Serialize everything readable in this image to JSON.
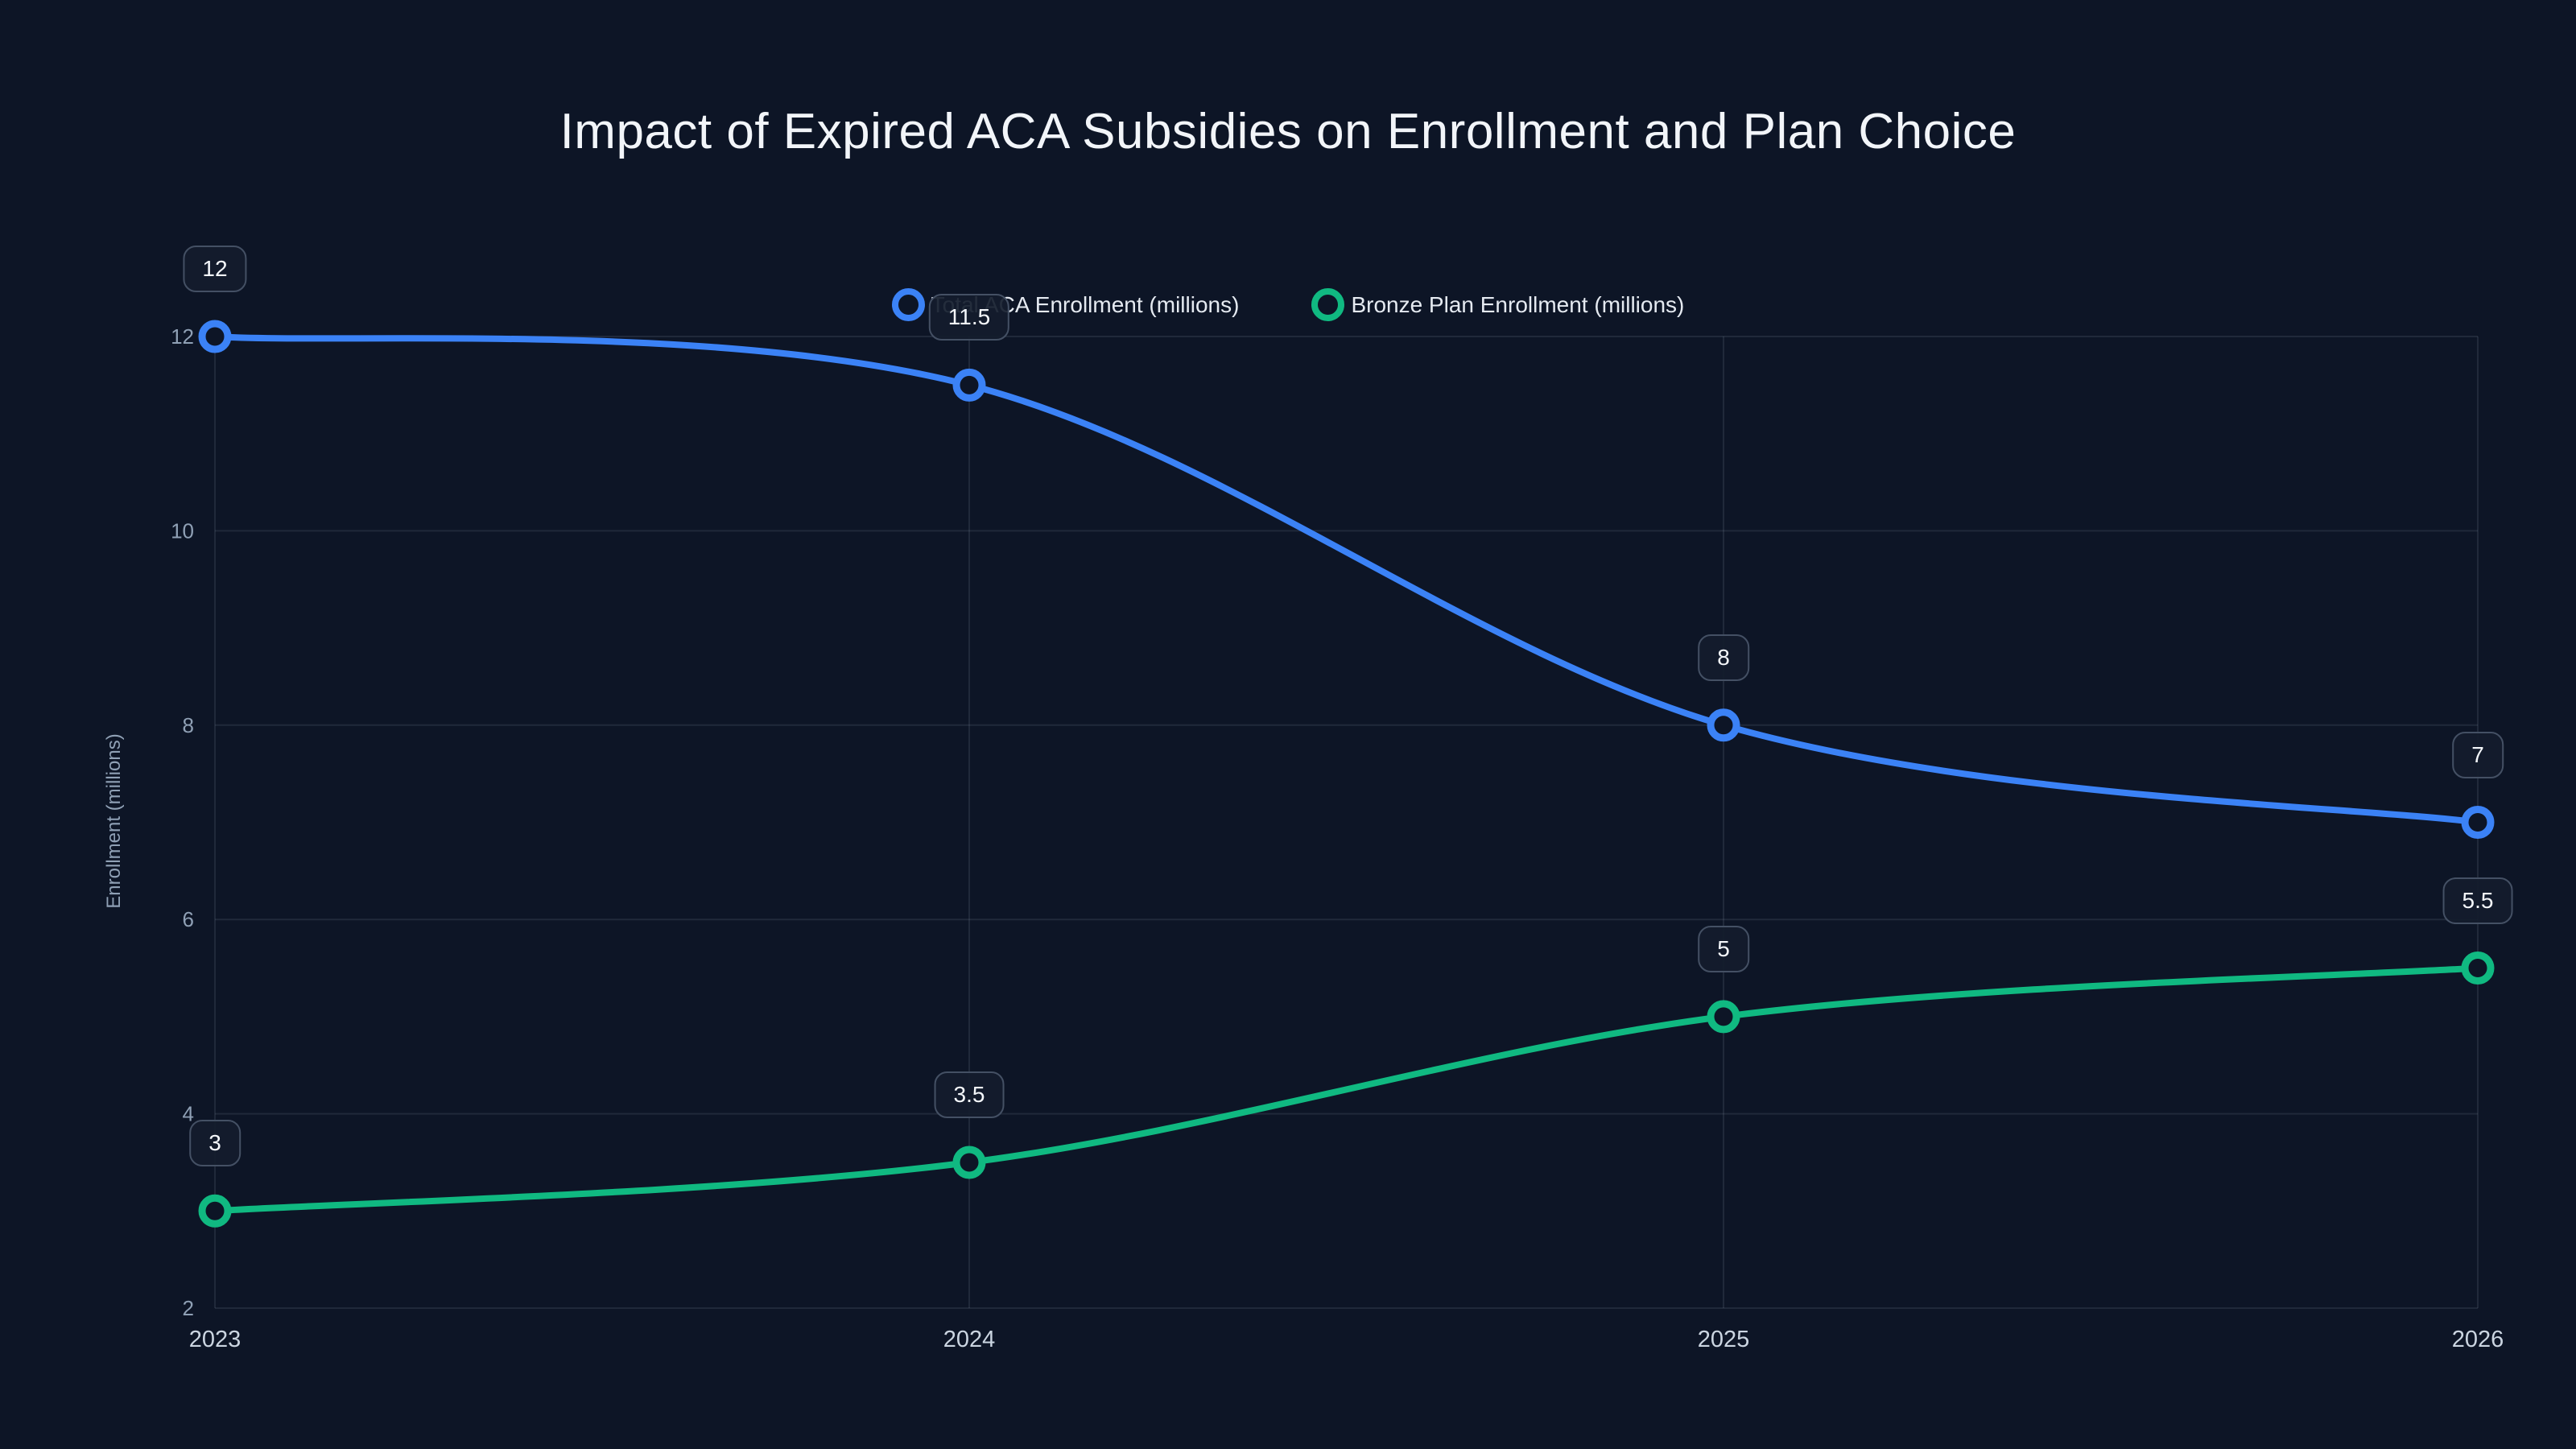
{
  "chart_data": {
    "type": "line",
    "title": "Impact of Expired ACA Subsidies on Enrollment and Plan Choice",
    "categories": [
      "2023",
      "2024",
      "2025",
      "2026"
    ],
    "series": [
      {
        "name": "Total ACA Enrollment (millions)",
        "color": "#3b82f6",
        "values": [
          12,
          11.5,
          8,
          7
        ],
        "point_labels": [
          "12",
          "11.5",
          "8",
          "7"
        ]
      },
      {
        "name": "Bronze Plan Enrollment (millions)",
        "color": "#10b981",
        "values": [
          3,
          3.5,
          5,
          5.5
        ],
        "point_labels": [
          "3",
          "3.5",
          "5",
          "5.5"
        ]
      }
    ],
    "xlabel": "",
    "ylabel": "Enrollment (millions)",
    "ylim": [
      2,
      12
    ],
    "yticks": [
      2,
      4,
      6,
      8,
      10,
      12
    ],
    "grid": true,
    "legend_position": "top-center",
    "curve": "smooth"
  },
  "colors": {
    "background": "#0d1526",
    "grid": "rgba(148,163,184,0.14)",
    "y_axis_text": "#8fa0b5",
    "x_axis_text": "#cbd5e1",
    "title_text": "#f2f5f9",
    "legend_text": "#e5eaf1",
    "label_box_bg": "rgba(19,28,45,0.92)",
    "label_box_border": "#445064",
    "label_text": "#f4f7fb"
  }
}
